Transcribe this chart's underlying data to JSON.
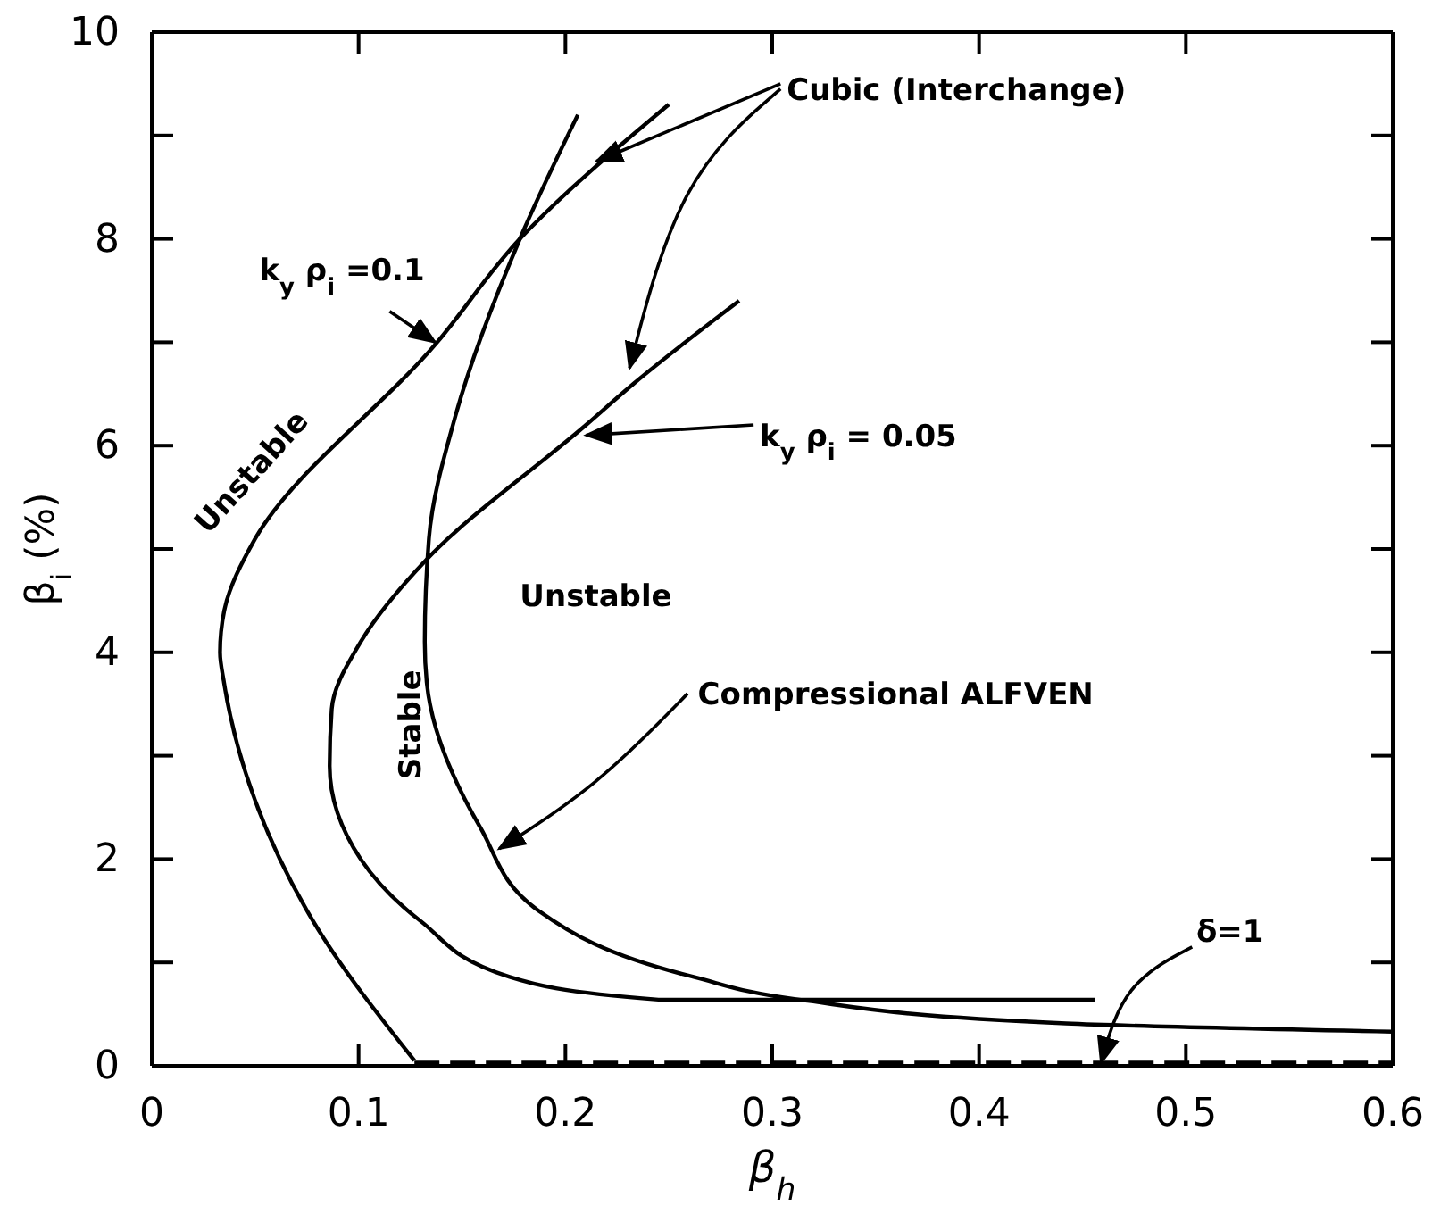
{
  "chart_data": {
    "type": "line",
    "xlabel": "β$_{h}$",
    "ylabel": "β$_{i}$ (%)",
    "xlim": [
      0,
      0.6
    ],
    "ylim": [
      0,
      10
    ],
    "xticks": [
      0,
      0.1,
      0.2,
      0.3,
      0.4,
      0.5,
      0.6
    ],
    "yticks": [
      0,
      {
        "value": 1,
        "label": null
      },
      2,
      {
        "value": 3,
        "label": null
      },
      4,
      {
        "value": 5,
        "label": null
      },
      6,
      {
        "value": 7,
        "label": null
      },
      8,
      {
        "value": 9,
        "label": null
      },
      10
    ],
    "grid": false,
    "marker": "none",
    "line_style": "solid",
    "series": [
      {
        "color": "#000000",
        "x": [
          0.25,
          0.178,
          0.138,
          0.05,
          0.035,
          0.033,
          0.035,
          0.078,
          0.127
        ],
        "values": [
          9.3,
          8.0,
          7.0,
          5.1,
          4.4,
          4.0,
          3.7,
          1.4,
          0.05
        ]
      },
      {
        "color": "#000000",
        "x": [
          0.206,
          0.178,
          0.147,
          0.134,
          0.132,
          0.133,
          0.159,
          0.187,
          0.262,
          0.313,
          0.442,
          0.6
        ],
        "values": [
          9.2,
          8.0,
          6.3,
          5.1,
          4.1,
          3.7,
          2.3,
          1.5,
          0.86,
          0.64,
          0.41,
          0.33
        ]
      },
      {
        "color": "#000000",
        "x": [
          0.284,
          0.233,
          0.21,
          0.133,
          0.101,
          0.087,
          0.086,
          0.101,
          0.13,
          0.173,
          0.245,
          0.456
        ],
        "values": [
          7.4,
          6.6,
          6.2,
          4.9,
          4.1,
          3.45,
          2.9,
          2.0,
          1.4,
          0.86,
          0.64,
          0.64
        ]
      },
      {
        "color": "#000000",
        "line_style": "dashed",
        "x": [
          0.127,
          0.6
        ],
        "values": [
          0.03,
          0.03
        ]
      }
    ],
    "annotations": [
      {
        "text": "Cubic (Interchange)",
        "x": 0.215,
        "y": 8.75
      },
      {
        "text": "k$_{y}$ ρ$_{i}$ =0.1",
        "x": 0.137,
        "y": 7.0
      },
      {
        "text": "k$_{y}$ ρ$_{i}$ = 0.05",
        "x": 0.21,
        "y": 6.1
      },
      "Unstable",
      "Unstable",
      {
        "text": "Compressional ALFVEN",
        "x": 0.168,
        "y": 2.1
      },
      "Stable",
      {
        "text": "δ=1",
        "x": 0.459,
        "y": 0.03
      }
    ]
  }
}
